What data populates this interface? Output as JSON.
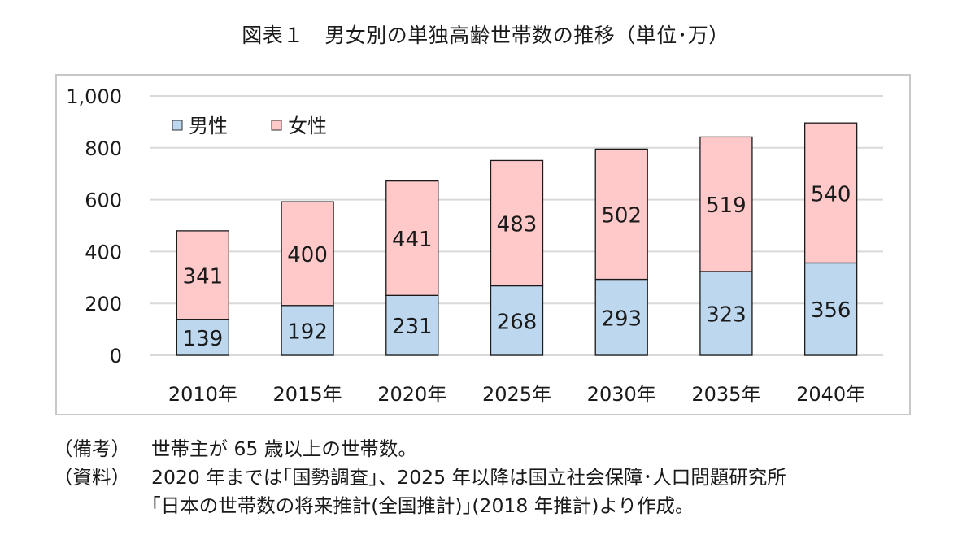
{
  "chart_data": {
    "type": "bar",
    "stacked": true,
    "title": "図表１　男女別の単独高齢世帯数の推移（単位･万）",
    "categories": [
      "2010年",
      "2015年",
      "2020年",
      "2025年",
      "2030年",
      "2035年",
      "2040年"
    ],
    "series": [
      {
        "name": "男性",
        "values": [
          139,
          192,
          231,
          268,
          293,
          323,
          356
        ],
        "color": "#bdd7ee"
      },
      {
        "name": "女性",
        "values": [
          341,
          400,
          441,
          483,
          502,
          519,
          540
        ],
        "color": "#ffc9c9"
      }
    ],
    "xlabel": "",
    "ylabel": "",
    "ylim": [
      0,
      1000
    ],
    "yticks": [
      0,
      200,
      400,
      600,
      800,
      1000
    ],
    "ytick_labels": [
      "0",
      "200",
      "400",
      "600",
      "800",
      "1,000"
    ],
    "grid": true,
    "legend_position": "top-left"
  },
  "notes": [
    {
      "label": "（備考）",
      "text": "世帯主が 65 歳以上の世帯数。"
    },
    {
      "label": "（資料）",
      "text": "2020 年までは｢国勢調査｣、2025 年以降は国立社会保障･人口問題研究所\n｢日本の世帯数の将来推計(全国推計)｣(2018 年推計)より作成。"
    }
  ]
}
